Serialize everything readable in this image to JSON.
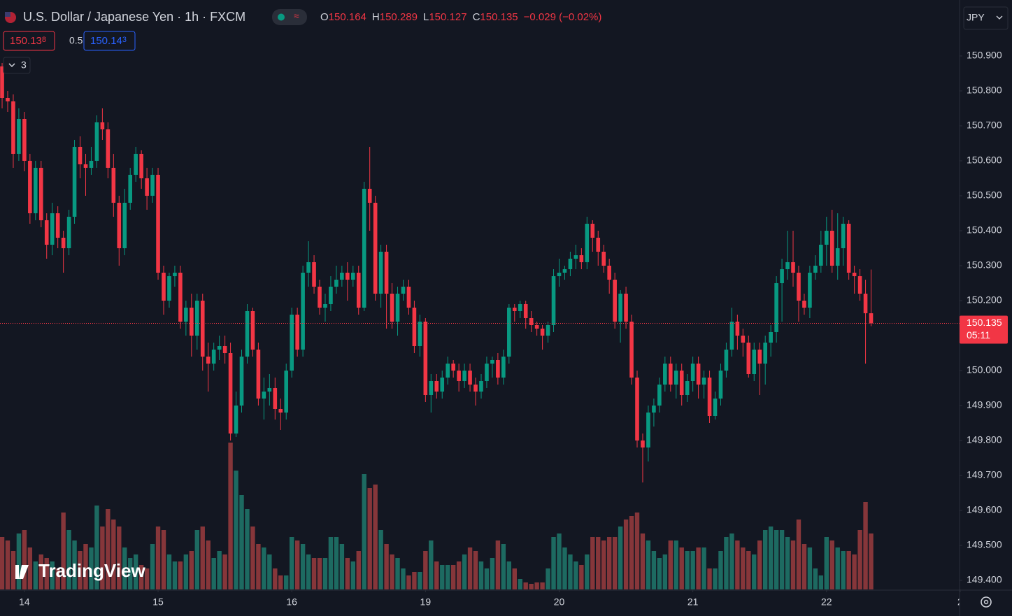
{
  "chart_data": {
    "type": "candlestick",
    "title": "U.S. Dollar / Japanese Yen · 1h · FXCM",
    "ohlc_labels": [
      "O",
      "H",
      "L",
      "C"
    ],
    "change": "−0.029 (−0.02%)",
    "sell": {
      "main": "150.13",
      "pip": "8"
    },
    "spread": "0.5",
    "buy": {
      "main": "150.14",
      "pip": "3"
    },
    "indicators": "3",
    "currency": "JPY",
    "countdown": "05:11",
    "logo": "TradingView",
    "up_color": "#089981",
    "down_color": "#f23645",
    "up_volume_color": "#1d6a61",
    "down_volume_color": "#86363a",
    "open": [
      150.87,
      150.78,
      150.77,
      150.62,
      150.72,
      150.6,
      150.45,
      150.58,
      150.43,
      150.36,
      150.45,
      150.38,
      150.35,
      150.44,
      150.64,
      150.59,
      150.58,
      150.6,
      150.71,
      150.69,
      150.58,
      150.48,
      150.35,
      150.48,
      150.56,
      150.62,
      150.55,
      150.5,
      150.56,
      150.28,
      150.2,
      150.27,
      150.28,
      150.14,
      150.18,
      150.1,
      150.2,
      150.04,
      150.02,
      150.06,
      150.07,
      150.05,
      149.82,
      149.9,
      150.04,
      150.17,
      150.06,
      149.92,
      149.94,
      149.95,
      149.89,
      149.88,
      150.0,
      150.16,
      150.06,
      150.28,
      150.31,
      150.24,
      150.18,
      150.19,
      150.24,
      150.26,
      150.28,
      150.26,
      150.28,
      150.18,
      150.52,
      150.48,
      150.22,
      150.34,
      150.22,
      150.14,
      150.22,
      150.24,
      150.18,
      150.07,
      150.14,
      149.93,
      149.97,
      149.94,
      149.98,
      150.02,
      150.0,
      149.97,
      150.0,
      149.96,
      149.94,
      149.97,
      150.02,
      150.03,
      149.98,
      150.04,
      150.18,
      150.17,
      150.19,
      150.15,
      150.13,
      150.12,
      150.1,
      150.13,
      150.27,
      150.28,
      150.29,
      150.32,
      150.33,
      150.31,
      150.42,
      150.38,
      150.34,
      150.3,
      150.26,
      150.14,
      150.22,
      150.14,
      149.98,
      149.8,
      149.78,
      149.88,
      149.9,
      149.96,
      150.02,
      149.96,
      150.0,
      149.93,
      149.97,
      150.02,
      149.96,
      149.98,
      149.87,
      149.92,
      150.0,
      150.06,
      150.14,
      150.1,
      150.08,
      149.99,
      150.06,
      150.02,
      150.08,
      150.11,
      150.25,
      150.29,
      150.31,
      150.28,
      150.2,
      150.18,
      150.28,
      150.3,
      150.36,
      150.4,
      150.3,
      150.35,
      150.42,
      150.28,
      150.27,
      150.22,
      150.164
    ],
    "high": [
      150.88,
      150.8,
      150.79,
      150.75,
      150.74,
      150.62,
      150.6,
      150.6,
      150.45,
      150.48,
      150.47,
      150.4,
      150.46,
      150.66,
      150.67,
      150.62,
      150.64,
      150.73,
      150.75,
      150.71,
      150.62,
      150.5,
      150.52,
      150.58,
      150.64,
      150.63,
      150.58,
      150.58,
      150.58,
      150.3,
      150.28,
      150.3,
      150.3,
      150.2,
      150.22,
      150.22,
      150.22,
      150.08,
      150.08,
      150.1,
      150.1,
      150.08,
      149.94,
      150.06,
      150.19,
      150.18,
      150.08,
      149.98,
      149.99,
      149.98,
      149.92,
      150.02,
      150.18,
      150.18,
      150.3,
      150.37,
      150.33,
      150.26,
      150.22,
      150.27,
      150.3,
      150.3,
      150.31,
      150.3,
      150.3,
      150.54,
      150.64,
      150.5,
      150.36,
      150.36,
      150.25,
      150.24,
      150.26,
      150.26,
      150.2,
      150.16,
      150.15,
      149.99,
      149.99,
      150.0,
      150.04,
      150.03,
      150.02,
      150.02,
      150.02,
      149.98,
      149.99,
      150.04,
      150.04,
      150.05,
      150.06,
      150.19,
      150.19,
      150.2,
      150.2,
      150.17,
      150.14,
      150.13,
      150.14,
      150.29,
      150.32,
      150.3,
      150.34,
      150.36,
      150.35,
      150.44,
      150.43,
      150.4,
      150.36,
      150.32,
      150.28,
      150.23,
      150.24,
      150.16,
      150.0,
      149.82,
      149.9,
      149.92,
      149.98,
      150.04,
      150.04,
      150.02,
      150.02,
      149.99,
      150.04,
      150.04,
      150.0,
      150.0,
      149.94,
      150.02,
      150.08,
      150.18,
      150.16,
      150.12,
      150.1,
      150.08,
      150.08,
      150.1,
      150.13,
      150.27,
      150.32,
      150.4,
      150.4,
      150.3,
      150.22,
      150.3,
      150.33,
      150.4,
      150.44,
      150.46,
      150.45,
      150.44,
      150.43,
      150.3,
      150.29,
      150.26,
      150.289
    ],
    "low": [
      150.75,
      150.74,
      150.58,
      150.6,
      150.57,
      150.42,
      150.43,
      150.41,
      150.32,
      150.33,
      150.35,
      150.28,
      150.33,
      150.42,
      150.55,
      150.5,
      150.56,
      150.58,
      150.66,
      150.55,
      150.44,
      150.3,
      150.33,
      150.46,
      150.54,
      150.52,
      150.46,
      150.48,
      150.26,
      150.16,
      150.18,
      150.24,
      150.12,
      150.1,
      150.04,
      150.06,
      150.0,
      149.94,
      150.0,
      150.03,
      150.02,
      149.8,
      149.81,
      149.88,
      150.02,
      150.04,
      149.9,
      149.86,
      149.9,
      149.86,
      149.83,
      149.86,
      149.98,
      150.04,
      150.04,
      150.24,
      150.22,
      150.16,
      150.14,
      150.17,
      150.22,
      150.24,
      150.2,
      150.24,
      150.16,
      150.17,
      150.4,
      150.2,
      150.18,
      150.12,
      150.12,
      150.1,
      150.2,
      150.16,
      150.05,
      150.04,
      149.91,
      149.88,
      149.92,
      149.92,
      149.96,
      149.98,
      149.94,
      149.95,
      149.94,
      149.9,
      149.92,
      149.95,
      149.98,
      149.96,
      149.96,
      150.02,
      150.14,
      150.15,
      150.12,
      150.11,
      150.1,
      150.06,
      150.08,
      150.11,
      150.24,
      150.26,
      150.27,
      150.29,
      150.29,
      150.29,
      150.34,
      150.3,
      150.28,
      150.22,
      150.12,
      150.08,
      150.12,
      149.96,
      149.78,
      149.68,
      149.74,
      149.84,
      149.88,
      149.94,
      149.94,
      149.92,
      149.9,
      149.91,
      149.94,
      149.92,
      149.92,
      149.85,
      149.86,
      149.9,
      149.98,
      150.04,
      150.06,
      150.04,
      149.98,
      149.97,
      149.93,
      149.96,
      150.04,
      150.08,
      150.14,
      150.26,
      150.24,
      150.14,
      150.16,
      150.15,
      150.26,
      150.28,
      150.3,
      150.28,
      150.26,
      150.3,
      150.26,
      150.22,
      150.2,
      150.02,
      150.127
    ],
    "close": [
      150.78,
      150.77,
      150.62,
      150.72,
      150.6,
      150.45,
      150.58,
      150.43,
      150.36,
      150.45,
      150.38,
      150.35,
      150.44,
      150.64,
      150.59,
      150.58,
      150.6,
      150.71,
      150.69,
      150.58,
      150.48,
      150.35,
      150.48,
      150.56,
      150.62,
      150.55,
      150.5,
      150.56,
      150.28,
      150.2,
      150.27,
      150.28,
      150.14,
      150.18,
      150.1,
      150.2,
      150.04,
      150.02,
      150.06,
      150.07,
      150.05,
      149.82,
      149.9,
      150.04,
      150.17,
      150.06,
      149.92,
      149.94,
      149.95,
      149.89,
      149.88,
      150.0,
      150.16,
      150.06,
      150.28,
      150.31,
      150.24,
      150.18,
      150.19,
      150.24,
      150.26,
      150.28,
      150.26,
      150.28,
      150.18,
      150.52,
      150.48,
      150.22,
      150.34,
      150.22,
      150.14,
      150.22,
      150.24,
      150.18,
      150.07,
      150.14,
      149.93,
      149.97,
      149.94,
      149.98,
      150.02,
      150.0,
      149.97,
      150.0,
      149.96,
      149.94,
      149.97,
      150.02,
      150.03,
      149.98,
      150.04,
      150.18,
      150.17,
      150.19,
      150.15,
      150.13,
      150.12,
      150.1,
      150.13,
      150.27,
      150.28,
      150.29,
      150.32,
      150.33,
      150.31,
      150.42,
      150.38,
      150.34,
      150.3,
      150.26,
      150.14,
      150.22,
      150.14,
      149.98,
      149.8,
      149.78,
      149.88,
      149.9,
      149.96,
      150.02,
      149.96,
      150.0,
      149.93,
      149.97,
      150.02,
      149.96,
      149.98,
      149.87,
      149.92,
      150.0,
      150.06,
      150.14,
      150.1,
      150.08,
      149.99,
      150.06,
      150.02,
      150.08,
      150.11,
      150.25,
      150.29,
      150.31,
      150.28,
      150.2,
      150.18,
      150.28,
      150.3,
      150.36,
      150.4,
      150.3,
      150.35,
      150.42,
      150.28,
      150.27,
      150.22,
      150.164,
      150.135
    ],
    "volume": [
      75,
      70,
      55,
      80,
      85,
      60,
      40,
      50,
      45,
      40,
      30,
      110,
      85,
      70,
      55,
      65,
      60,
      120,
      90,
      115,
      100,
      90,
      60,
      45,
      50,
      35,
      30,
      65,
      90,
      85,
      50,
      40,
      40,
      50,
      55,
      85,
      90,
      70,
      45,
      55,
      50,
      210,
      170,
      135,
      115,
      90,
      65,
      60,
      50,
      30,
      20,
      20,
      75,
      70,
      65,
      50,
      45,
      45,
      45,
      75,
      75,
      65,
      45,
      40,
      55,
      165,
      145,
      150,
      85,
      65,
      50,
      45,
      30,
      20,
      25,
      25,
      55,
      70,
      40,
      35,
      35,
      35,
      40,
      50,
      60,
      55,
      40,
      30,
      45,
      70,
      65,
      40,
      30,
      15,
      10,
      8,
      10,
      10,
      30,
      75,
      80,
      60,
      50,
      40,
      35,
      50,
      75,
      75,
      70,
      75,
      75,
      90,
      100,
      105,
      110,
      80,
      70,
      55,
      45,
      50,
      70,
      70,
      60,
      55,
      55,
      60,
      60,
      30,
      30,
      55,
      75,
      80,
      70,
      60,
      55,
      50,
      70,
      85,
      90,
      85,
      85,
      75,
      70,
      100,
      65,
      60,
      30,
      20,
      75,
      70,
      60,
      55,
      55,
      50,
      85,
      125,
      80
    ],
    "volume_lim": [
      0,
      843
    ],
    "xlim": [
      -0.38,
      171.88
    ],
    "xticks": [
      {
        "value": 4,
        "label": "14"
      },
      {
        "value": 28,
        "label": "15"
      },
      {
        "value": 52,
        "label": "16"
      },
      {
        "value": 76,
        "label": "19"
      },
      {
        "value": 100,
        "label": "20"
      },
      {
        "value": 124,
        "label": "21"
      },
      {
        "value": 148,
        "label": "22"
      },
      {
        "value": 172,
        "label": "2"
      }
    ],
    "ylim": [
      149.374,
      151.06
    ],
    "yticks": [
      {
        "value": 150.9,
        "label": "150.900"
      },
      {
        "value": 150.8,
        "label": "150.800"
      },
      {
        "value": 150.7,
        "label": "150.700"
      },
      {
        "value": 150.6,
        "label": "150.600"
      },
      {
        "value": 150.5,
        "label": "150.500"
      },
      {
        "value": 150.4,
        "label": "150.400"
      },
      {
        "value": 150.3,
        "label": "150.300"
      },
      {
        "value": 150.2,
        "label": "150.200"
      },
      {
        "value": 150.1,
        "label": "150.100"
      },
      {
        "value": 150.0,
        "label": "150.000"
      },
      {
        "value": 149.9,
        "label": "149.900"
      },
      {
        "value": 149.8,
        "label": "149.800"
      },
      {
        "value": 149.7,
        "label": "149.700"
      },
      {
        "value": 149.6,
        "label": "149.600"
      },
      {
        "value": 149.5,
        "label": "149.500"
      },
      {
        "value": 149.4,
        "label": "149.400"
      }
    ]
  }
}
